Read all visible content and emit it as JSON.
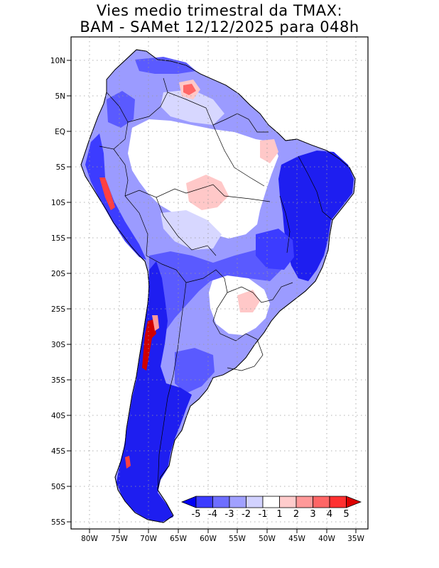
{
  "title": {
    "line1": "Vies medio trimestral da TMAX:",
    "line2": "BAM - SAMet 12/12/2025  para 048h"
  },
  "axes": {
    "lat_labels": [
      "10N",
      "5N",
      "EQ",
      "5S",
      "10S",
      "15S",
      "20S",
      "25S",
      "30S",
      "35S",
      "40S",
      "45S",
      "50S",
      "55S"
    ],
    "lon_labels": [
      "80W",
      "75W",
      "70W",
      "65W",
      "60W",
      "55W",
      "50W",
      "45W",
      "40W",
      "35W"
    ]
  },
  "colorbar": {
    "labels": [
      "-5",
      "-4",
      "-3",
      "-2",
      "-1",
      "1",
      "2",
      "3",
      "4",
      "5"
    ],
    "colors": [
      "#0000f5",
      "#3c3cff",
      "#6e6eff",
      "#a0a0ff",
      "#d2d2ff",
      "#ffffff",
      "#ffcccc",
      "#ff9999",
      "#ff6666",
      "#ff3030",
      "#dd0000"
    ]
  },
  "colors": {
    "strong_blue": "#1e1ef0",
    "mid_blue": "#5a5aff",
    "light_blue": "#9b9bff",
    "pale_blue": "#d7d7ff",
    "pink": "#ffc8c8",
    "red": "#ff4040",
    "dark_red": "#d00000"
  }
}
